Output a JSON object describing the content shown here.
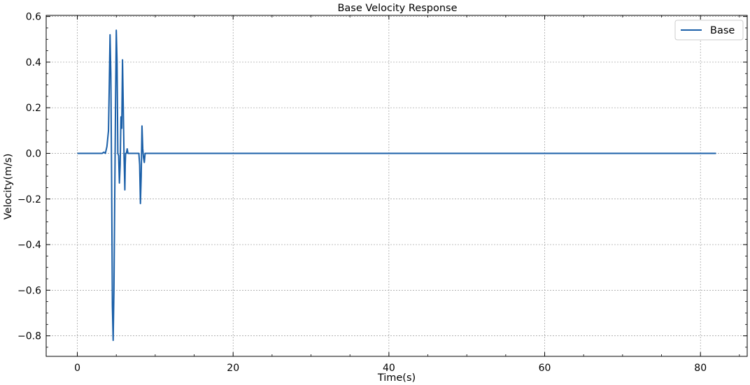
{
  "chart_data": {
    "type": "line",
    "title": "Base Velocity Response",
    "xlabel": "Time(s)",
    "ylabel": "Velocity(m/s)",
    "xlim": [
      -4,
      86
    ],
    "ylim": [
      -0.89,
      0.605
    ],
    "xticks": [
      0,
      20,
      40,
      60,
      80
    ],
    "yticks": [
      -0.8,
      -0.6,
      -0.4,
      -0.2,
      0.0,
      0.2,
      0.4,
      0.6
    ],
    "xtick_labels": [
      "0",
      "20",
      "40",
      "60",
      "80"
    ],
    "ytick_labels": [
      "−0.8",
      "−0.6",
      "−0.4",
      "−0.2",
      "0.0",
      "0.2",
      "0.4",
      "0.6"
    ],
    "grid": true,
    "legend": {
      "position": "top-right"
    },
    "series": [
      {
        "name": "Base",
        "color": "#1a5fa8",
        "x": [
          0,
          2.5,
          3.2,
          3.4,
          3.6,
          3.8,
          4.0,
          4.1,
          4.2,
          4.3,
          4.4,
          4.5,
          4.6,
          4.7,
          4.8,
          4.9,
          5.0,
          5.1,
          5.2,
          5.3,
          5.4,
          5.5,
          5.6,
          5.7,
          5.8,
          5.9,
          6.0,
          6.1,
          6.15,
          6.2,
          6.3,
          6.4,
          6.5,
          6.6,
          6.7,
          6.8,
          6.9,
          7.0,
          7.5,
          7.9,
          8.0,
          8.1,
          8.2,
          8.3,
          8.4,
          8.5,
          8.6,
          8.7,
          8.8,
          8.9,
          9.0,
          82.0
        ],
        "y": [
          0.0,
          0.0,
          0.0,
          0.005,
          0.0,
          0.03,
          0.1,
          0.3,
          0.52,
          0.35,
          -0.1,
          -0.67,
          -0.82,
          -0.6,
          -0.2,
          0.2,
          0.54,
          0.4,
          0.0,
          -0.01,
          -0.13,
          -0.05,
          0.16,
          0.11,
          0.41,
          0.2,
          -0.02,
          -0.16,
          -0.05,
          0.0,
          0.0,
          0.02,
          0.0,
          0.0,
          0.0,
          0.0,
          0.0,
          0.0,
          0.0,
          0.0,
          -0.05,
          -0.22,
          -0.1,
          0.12,
          0.02,
          -0.02,
          -0.04,
          0.0,
          0.0,
          0.0,
          0.0,
          0.0
        ]
      }
    ]
  }
}
